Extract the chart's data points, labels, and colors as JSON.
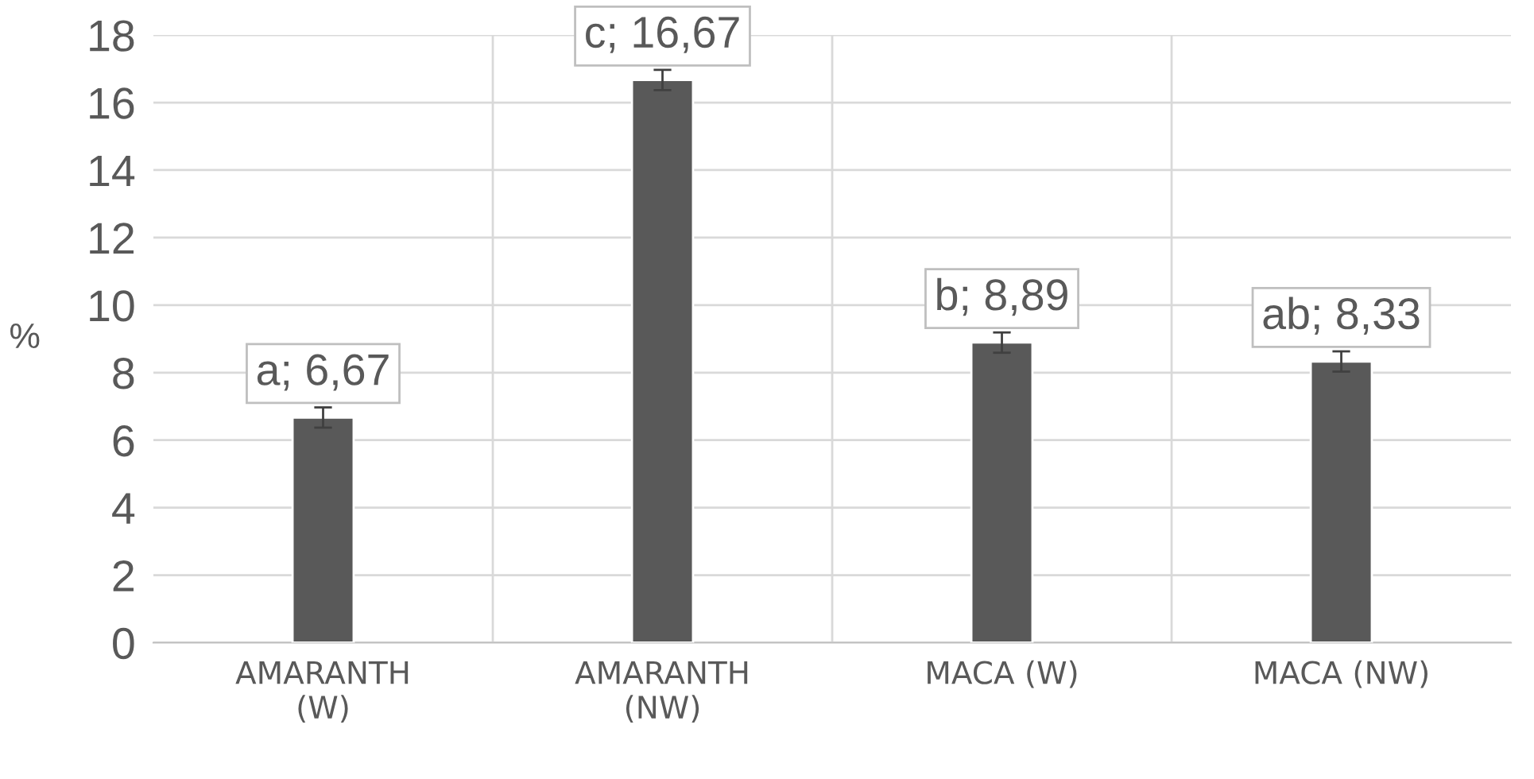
{
  "chart_data": {
    "type": "bar",
    "ylabel": "%",
    "categories": [
      "AMARANTH\n(W)",
      "AMARANTH\n(NW)",
      "MACA (W)",
      "MACA (NW)"
    ],
    "values": [
      6.67,
      16.67,
      8.89,
      8.33
    ],
    "value_labels": [
      "a; 6,67",
      "c; 16,67",
      "b; 8,89",
      "ab; 8,33"
    ],
    "errors": [
      0.3,
      0.3,
      0.3,
      0.3
    ],
    "color": "#595959",
    "ylim": [
      0,
      18
    ],
    "yticks": [
      0,
      2,
      4,
      6,
      8,
      10,
      12,
      14,
      16,
      18
    ],
    "grid": true
  }
}
